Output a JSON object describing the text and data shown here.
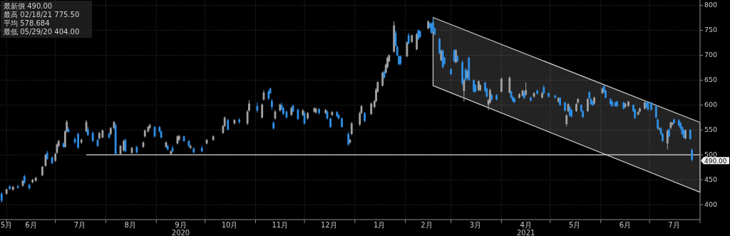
{
  "chart_data": {
    "type": "candlestick",
    "xlim": [
      "2020-05-28",
      "2021-08-01"
    ],
    "ylim": [
      370,
      811
    ],
    "yticks": [
      400,
      450,
      500,
      550,
      600,
      650,
      700,
      750,
      800
    ],
    "xticks": [
      {
        "value": "2020-05-28",
        "label": "5月"
      },
      {
        "value": "2020-06-01",
        "label": null
      },
      {
        "value": "2020-06-16",
        "label": "6月"
      },
      {
        "value": "2020-07-01",
        "label": null
      },
      {
        "value": "2020-07-16",
        "label": "7月"
      },
      {
        "value": "2020-08-01",
        "label": null
      },
      {
        "value": "2020-08-16",
        "label": "8月"
      },
      {
        "value": "2020-09-01",
        "label": null
      },
      {
        "value": "2020-09-16",
        "label": "9月\n2020"
      },
      {
        "value": "2020-10-01",
        "label": null
      },
      {
        "value": "2020-10-16",
        "label": "10月"
      },
      {
        "value": "2020-11-01",
        "label": null
      },
      {
        "value": "2020-11-16",
        "label": "11月"
      },
      {
        "value": "2020-12-01",
        "label": null
      },
      {
        "value": "2020-12-16",
        "label": "12月"
      },
      {
        "value": "2021-01-01",
        "label": null
      },
      {
        "value": "2021-01-16",
        "label": "1月"
      },
      {
        "value": "2021-02-01",
        "label": null
      },
      {
        "value": "2021-02-14",
        "label": "2月"
      },
      {
        "value": "2021-03-01",
        "label": null
      },
      {
        "value": "2021-03-16",
        "label": "3月"
      },
      {
        "value": "2021-04-01",
        "label": null
      },
      {
        "value": "2021-04-16",
        "label": "4月\n2021"
      },
      {
        "value": "2021-05-01",
        "label": null
      },
      {
        "value": "2021-05-16",
        "label": "5月"
      },
      {
        "value": "2021-06-01",
        "label": null
      },
      {
        "value": "2021-06-16",
        "label": "6月"
      },
      {
        "value": "2021-07-01",
        "label": null
      },
      {
        "value": "2021-07-16",
        "label": "7月"
      },
      {
        "value": "2021-08-01",
        "label": null
      }
    ],
    "grid": true,
    "annotations": [
      "最新價 490.00",
      "最高 02/18/21 775.50",
      "平均 578.684",
      "最低 05/29/20 404.00",
      {
        "text": "490.00",
        "x": "2021-07-27",
        "y": 490
      }
    ],
    "series": [
      {
        "type": "line",
        "x": [
          "2021-02-18",
          "2021-08-01"
        ],
        "values": [
          null,
          null
        ],
        "lower": [
          639,
          425
        ],
        "upper": [
          776,
          565
        ],
        "color": "#d0d0d0"
      },
      {
        "type": "line",
        "x": [
          "2020-07-20",
          "2021-08-01"
        ],
        "values": [
          500,
          500
        ],
        "color": "#d9d9d9"
      },
      {
        "type": "candlestick",
        "color": "#a3a3a3",
        "x": [
          "2020-06-01",
          "2020-06-05",
          "2020-06-11",
          "2020-06-17",
          "2020-06-19",
          "2020-06-23",
          "2020-06-25",
          "2020-07-01",
          "2020-07-02",
          "2020-07-03",
          "2020-07-07",
          "2020-07-08",
          "2020-07-17",
          "2020-07-20",
          "2020-07-28",
          "2020-07-30",
          "2020-08-04",
          "2020-08-06",
          "2020-08-10",
          "2020-08-12",
          "2020-08-17",
          "2020-08-24",
          "2020-08-25",
          "2020-08-27",
          "2020-08-28",
          "2020-09-07",
          "2020-09-10",
          "2020-09-14",
          "2020-09-15",
          "2020-09-22",
          "2020-10-02",
          "2020-10-06",
          "2020-10-12",
          "2020-10-13",
          "2020-10-19",
          "2020-10-27",
          "2020-10-28",
          "2020-11-05",
          "2020-11-06",
          "2020-11-13",
          "2020-11-16",
          "2020-11-23",
          "2020-11-30",
          "2020-12-03",
          "2020-12-07",
          "2020-12-08",
          "2020-12-14",
          "2020-12-18",
          "2020-12-29",
          "2020-12-30",
          "2021-01-04",
          "2021-01-05",
          "2021-01-11",
          "2021-01-13",
          "2021-01-14",
          "2021-01-15",
          "2021-01-18",
          "2021-01-20",
          "2021-01-21",
          "2021-01-22",
          "2021-01-25",
          "2021-02-02",
          "2021-02-05",
          "2021-02-08",
          "2021-02-15",
          "2021-02-23",
          "2021-03-04",
          "2021-03-09",
          "2021-03-11",
          "2021-03-18",
          "2021-03-19",
          "2021-03-24",
          "2021-03-25",
          "2021-04-01",
          "2021-04-06",
          "2021-04-12",
          "2021-04-14",
          "2021-04-16",
          "2021-04-21",
          "2021-04-26",
          "2021-05-06",
          "2021-05-11",
          "2021-05-12",
          "2021-05-17",
          "2021-05-18",
          "2021-05-24",
          "2021-05-28",
          "2021-06-02",
          "2021-06-16",
          "2021-06-18",
          "2021-06-24",
          "2021-06-25",
          "2021-06-28",
          "2021-07-07",
          "2021-07-12",
          "2021-07-14",
          "2021-07-15",
          "2021-07-23"
        ],
        "ohlc": [
          [
            422,
            432,
            420,
            431
          ],
          [
            430,
            437,
            428,
            436
          ],
          [
            438,
            449,
            436,
            448
          ],
          [
            445,
            452,
            443,
            450
          ],
          [
            448,
            456,
            446,
            454
          ],
          [
            459,
            478,
            457,
            476
          ],
          [
            478,
            502,
            476,
            500
          ],
          [
            488,
            504,
            486,
            502
          ],
          [
            504,
            523,
            502,
            521
          ],
          [
            518,
            530,
            515,
            528
          ],
          [
            516,
            549,
            514,
            547
          ],
          [
            547,
            570,
            545,
            566
          ],
          [
            525,
            533,
            522,
            530
          ],
          [
            547,
            570,
            545,
            566
          ],
          [
            533,
            546,
            531,
            544
          ],
          [
            535,
            551,
            533,
            549
          ],
          [
            542,
            556,
            540,
            554
          ],
          [
            554,
            568,
            552,
            566
          ],
          [
            502,
            520,
            500,
            518
          ],
          [
            509,
            530,
            507,
            528
          ],
          [
            504,
            516,
            502,
            514
          ],
          [
            516,
            527,
            514,
            525
          ],
          [
            537,
            551,
            535,
            549
          ],
          [
            547,
            558,
            545,
            556
          ],
          [
            554,
            562,
            552,
            560
          ],
          [
            516,
            527,
            514,
            525
          ],
          [
            502,
            509,
            500,
            507
          ],
          [
            523,
            539,
            521,
            537
          ],
          [
            530,
            540,
            528,
            538
          ],
          [
            514,
            520,
            512,
            518
          ],
          [
            523,
            532,
            521,
            530
          ],
          [
            530,
            539,
            528,
            537
          ],
          [
            544,
            560,
            542,
            558
          ],
          [
            558,
            577,
            556,
            575
          ],
          [
            563,
            572,
            561,
            570
          ],
          [
            563,
            590,
            560,
            587
          ],
          [
            589,
            610,
            587,
            603
          ],
          [
            575,
            603,
            573,
            601
          ],
          [
            611,
            630,
            609,
            625
          ],
          [
            573,
            590,
            571,
            587
          ],
          [
            589,
            603,
            587,
            601
          ],
          [
            580,
            597,
            578,
            594
          ],
          [
            580,
            592,
            578,
            589
          ],
          [
            573,
            586,
            571,
            584
          ],
          [
            587,
            596,
            585,
            593
          ],
          [
            585,
            595,
            583,
            593
          ],
          [
            584,
            592,
            582,
            590
          ],
          [
            580,
            588,
            578,
            586
          ],
          [
            525,
            532,
            523,
            530
          ],
          [
            542,
            566,
            540,
            563
          ],
          [
            561,
            587,
            558,
            584
          ],
          [
            584,
            600,
            582,
            598
          ],
          [
            582,
            605,
            580,
            603
          ],
          [
            596,
            610,
            594,
            608
          ],
          [
            608,
            634,
            606,
            631
          ],
          [
            627,
            648,
            625,
            646
          ],
          [
            639,
            667,
            637,
            665
          ],
          [
            665,
            683,
            663,
            681
          ],
          [
            676,
            697,
            674,
            695
          ],
          [
            688,
            702,
            686,
            700
          ],
          [
            707,
            768,
            705,
            760
          ],
          [
            698,
            728,
            696,
            726
          ],
          [
            727,
            742,
            725,
            740
          ],
          [
            712,
            745,
            710,
            742
          ],
          [
            754,
            770,
            752,
            768
          ],
          [
            690,
            711,
            688,
            709
          ],
          [
            686,
            712,
            684,
            710
          ],
          [
            628,
            652,
            607,
            650
          ],
          [
            655,
            670,
            653,
            668
          ],
          [
            630,
            650,
            628,
            648
          ],
          [
            630,
            642,
            628,
            640
          ],
          [
            601,
            612,
            590,
            610
          ],
          [
            605,
            633,
            603,
            630
          ],
          [
            627,
            655,
            625,
            653
          ],
          [
            625,
            658,
            623,
            655
          ],
          [
            615,
            624,
            613,
            622
          ],
          [
            619,
            631,
            617,
            629
          ],
          [
            621,
            645,
            619,
            630
          ],
          [
            617,
            626,
            615,
            624
          ],
          [
            615,
            626,
            613,
            624
          ],
          [
            607,
            616,
            605,
            614
          ],
          [
            562,
            582,
            557,
            579
          ],
          [
            588,
            604,
            586,
            602
          ],
          [
            588,
            604,
            586,
            602
          ],
          [
            605,
            614,
            603,
            612
          ],
          [
            588,
            614,
            586,
            612
          ],
          [
            603,
            617,
            601,
            615
          ],
          [
            624,
            635,
            622,
            633
          ],
          [
            596,
            605,
            594,
            603
          ],
          [
            598,
            608,
            596,
            607
          ],
          [
            581,
            588,
            579,
            586
          ],
          [
            587,
            595,
            585,
            593
          ],
          [
            593,
            607,
            591,
            605
          ],
          [
            551,
            556,
            549,
            553
          ],
          [
            523,
            551,
            511,
            548
          ],
          [
            554,
            567,
            552,
            565
          ],
          [
            561,
            566,
            559,
            564
          ],
          [
            533,
            551,
            531,
            549
          ]
        ]
      },
      {
        "type": "candlestick",
        "color": "#2f8fe6",
        "x": [
          "2020-05-29",
          "2020-06-03",
          "2020-06-08",
          "2020-06-12",
          "2020-06-15",
          "2020-06-26",
          "2020-06-29",
          "2020-07-06",
          "2020-07-09",
          "2020-07-13",
          "2020-07-15",
          "2020-07-21",
          "2020-07-24",
          "2020-07-27",
          "2020-08-03",
          "2020-08-07",
          "2020-08-13",
          "2020-08-20",
          "2020-08-31",
          "2020-09-03",
          "2020-09-04",
          "2020-09-08",
          "2020-09-11",
          "2020-09-18",
          "2020-09-21",
          "2020-09-24",
          "2020-09-29",
          "2020-10-15",
          "2020-10-22",
          "2020-11-02",
          "2020-11-09",
          "2020-11-10",
          "2020-11-11",
          "2020-11-12",
          "2020-11-17",
          "2020-11-18",
          "2020-11-20",
          "2020-11-24",
          "2020-11-27",
          "2020-12-01",
          "2020-12-10",
          "2020-12-15",
          "2020-12-17",
          "2020-12-21",
          "2020-12-22",
          "2020-12-24",
          "2020-12-28",
          "2021-01-07",
          "2021-01-19",
          "2021-01-26",
          "2021-01-27",
          "2021-01-28",
          "2021-01-29",
          "2021-02-03",
          "2021-02-09",
          "2021-02-10",
          "2021-02-16",
          "2021-02-17",
          "2021-02-18",
          "2021-02-19",
          "2021-02-22",
          "2021-02-24",
          "2021-02-25",
          "2021-03-01",
          "2021-03-03",
          "2021-03-05",
          "2021-03-08",
          "2021-03-10",
          "2021-03-12",
          "2021-03-15",
          "2021-03-16",
          "2021-03-22",
          "2021-03-23",
          "2021-03-26",
          "2021-03-29",
          "2021-04-07",
          "2021-04-08",
          "2021-04-09",
          "2021-04-15",
          "2021-04-19",
          "2021-04-23",
          "2021-04-27",
          "2021-04-30",
          "2021-05-04",
          "2021-05-07",
          "2021-05-10",
          "2021-05-13",
          "2021-05-14",
          "2021-05-20",
          "2021-05-21",
          "2021-05-25",
          "2021-05-26",
          "2021-05-27",
          "2021-06-03",
          "2021-06-04",
          "2021-06-07",
          "2021-06-08",
          "2021-06-10",
          "2021-06-11",
          "2021-06-15",
          "2021-06-21",
          "2021-06-22",
          "2021-06-29",
          "2021-06-30",
          "2021-07-02",
          "2021-07-05",
          "2021-07-06",
          "2021-07-08",
          "2021-07-09",
          "2021-07-13",
          "2021-07-16",
          "2021-07-19",
          "2021-07-20",
          "2021-07-21",
          "2021-07-22",
          "2021-07-26",
          "2021-07-27"
        ],
        "ohlc": [
          [
            422,
            425,
            404,
            408
          ],
          [
            437,
            439,
            430,
            431
          ],
          [
            437,
            440,
            432,
            434
          ],
          [
            457,
            460,
            442,
            444
          ],
          [
            440,
            442,
            430,
            433
          ],
          [
            504,
            508,
            490,
            492
          ],
          [
            495,
            497,
            481,
            483
          ],
          [
            523,
            526,
            514,
            516
          ],
          [
            552,
            556,
            545,
            546
          ],
          [
            532,
            536,
            522,
            525
          ],
          [
            542,
            545,
            512,
            514
          ],
          [
            551,
            556,
            538,
            540
          ],
          [
            544,
            547,
            526,
            528
          ],
          [
            530,
            532,
            516,
            518
          ],
          [
            542,
            545,
            532,
            535
          ],
          [
            560,
            563,
            500,
            502
          ],
          [
            530,
            533,
            505,
            507
          ],
          [
            516,
            518,
            503,
            505
          ],
          [
            556,
            558,
            535,
            537
          ],
          [
            556,
            558,
            545,
            547
          ],
          [
            547,
            549,
            533,
            535
          ],
          [
            518,
            520,
            509,
            511
          ],
          [
            514,
            518,
            505,
            507
          ],
          [
            537,
            539,
            526,
            528
          ],
          [
            528,
            530,
            515,
            518
          ],
          [
            513,
            515,
            503,
            505
          ],
          [
            514,
            518,
            505,
            507
          ],
          [
            570,
            572,
            549,
            551
          ],
          [
            571,
            574,
            562,
            566
          ],
          [
            598,
            605,
            585,
            589
          ],
          [
            627,
            630,
            610,
            613
          ],
          [
            633,
            635,
            622,
            624
          ],
          [
            608,
            612,
            590,
            596
          ],
          [
            565,
            567,
            551,
            553
          ],
          [
            600,
            605,
            590,
            592
          ],
          [
            594,
            596,
            580,
            582
          ],
          [
            587,
            589,
            573,
            575
          ],
          [
            599,
            601,
            585,
            587
          ],
          [
            591,
            593,
            570,
            572
          ],
          [
            584,
            588,
            561,
            563
          ],
          [
            592,
            594,
            581,
            584
          ],
          [
            587,
            589,
            571,
            573
          ],
          [
            573,
            575,
            554,
            556
          ],
          [
            586,
            588,
            576,
            578
          ],
          [
            580,
            582,
            571,
            573
          ],
          [
            573,
            575,
            555,
            556
          ],
          [
            542,
            546,
            518,
            521
          ],
          [
            584,
            586,
            566,
            568
          ],
          [
            667,
            670,
            653,
            655
          ],
          [
            745,
            750,
            717,
            719
          ],
          [
            717,
            720,
            698,
            700
          ],
          [
            698,
            700,
            680,
            682
          ],
          [
            698,
            700,
            680,
            683
          ],
          [
            740,
            745,
            722,
            724
          ],
          [
            750,
            752,
            731,
            733
          ],
          [
            748,
            750,
            735,
            737
          ],
          [
            764,
            766,
            754,
            756
          ],
          [
            764,
            766,
            743,
            745
          ],
          [
            766,
            775.5,
            748,
            750
          ],
          [
            754,
            756,
            740,
            742
          ],
          [
            733,
            735,
            702,
            704
          ],
          [
            709,
            712,
            674,
            676
          ],
          [
            695,
            697,
            681,
            683
          ],
          [
            672,
            675,
            660,
            662
          ],
          [
            710,
            712,
            686,
            688
          ],
          [
            698,
            700,
            686,
            688
          ],
          [
            686,
            690,
            640,
            643
          ],
          [
            672,
            675,
            648,
            650
          ],
          [
            695,
            697,
            648,
            650
          ],
          [
            650,
            652,
            625,
            627
          ],
          [
            640,
            642,
            625,
            627
          ],
          [
            645,
            647,
            626,
            628
          ],
          [
            633,
            635,
            615,
            617
          ],
          [
            620,
            622,
            609,
            611
          ],
          [
            620,
            622,
            609,
            611
          ],
          [
            627,
            629,
            613,
            615
          ],
          [
            616,
            618,
            606,
            608
          ],
          [
            613,
            615,
            604,
            606
          ],
          [
            626,
            628,
            612,
            614
          ],
          [
            615,
            617,
            607,
            609
          ],
          [
            629,
            631,
            621,
            623
          ],
          [
            636,
            640,
            622,
            624
          ],
          [
            624,
            626,
            615,
            617
          ],
          [
            619,
            621,
            613,
            615
          ],
          [
            614,
            616,
            598,
            600
          ],
          [
            605,
            607,
            587,
            589
          ],
          [
            596,
            598,
            577,
            579
          ],
          [
            590,
            592,
            575,
            577
          ],
          [
            600,
            602,
            586,
            588
          ],
          [
            588,
            590,
            574,
            576
          ],
          [
            626,
            628,
            612,
            614
          ],
          [
            612,
            614,
            600,
            602
          ],
          [
            607,
            609,
            598,
            600
          ],
          [
            638,
            640,
            624,
            626
          ],
          [
            629,
            631,
            613,
            615
          ],
          [
            612,
            614,
            600,
            602
          ],
          [
            607,
            609,
            596,
            598
          ],
          [
            605,
            607,
            596,
            598
          ],
          [
            607,
            609,
            596,
            598
          ],
          [
            605,
            607,
            591,
            593
          ],
          [
            600,
            602,
            586,
            588
          ],
          [
            591,
            593,
            572,
            574
          ],
          [
            605,
            607,
            594,
            596
          ],
          [
            605,
            607,
            589,
            591
          ],
          [
            605,
            607,
            589,
            591
          ],
          [
            598,
            600,
            573,
            575
          ],
          [
            571,
            573,
            551,
            553
          ],
          [
            553,
            555,
            539,
            542
          ],
          [
            542,
            544,
            526,
            528
          ],
          [
            551,
            553,
            535,
            537
          ],
          [
            571,
            573,
            562,
            564
          ],
          [
            569,
            572,
            557,
            559
          ],
          [
            564,
            566,
            552,
            554
          ],
          [
            556,
            558,
            540,
            542
          ],
          [
            550,
            552,
            533,
            535
          ],
          [
            550,
            552,
            530,
            532
          ],
          [
            510,
            513,
            487,
            490
          ]
        ]
      }
    ]
  }
}
